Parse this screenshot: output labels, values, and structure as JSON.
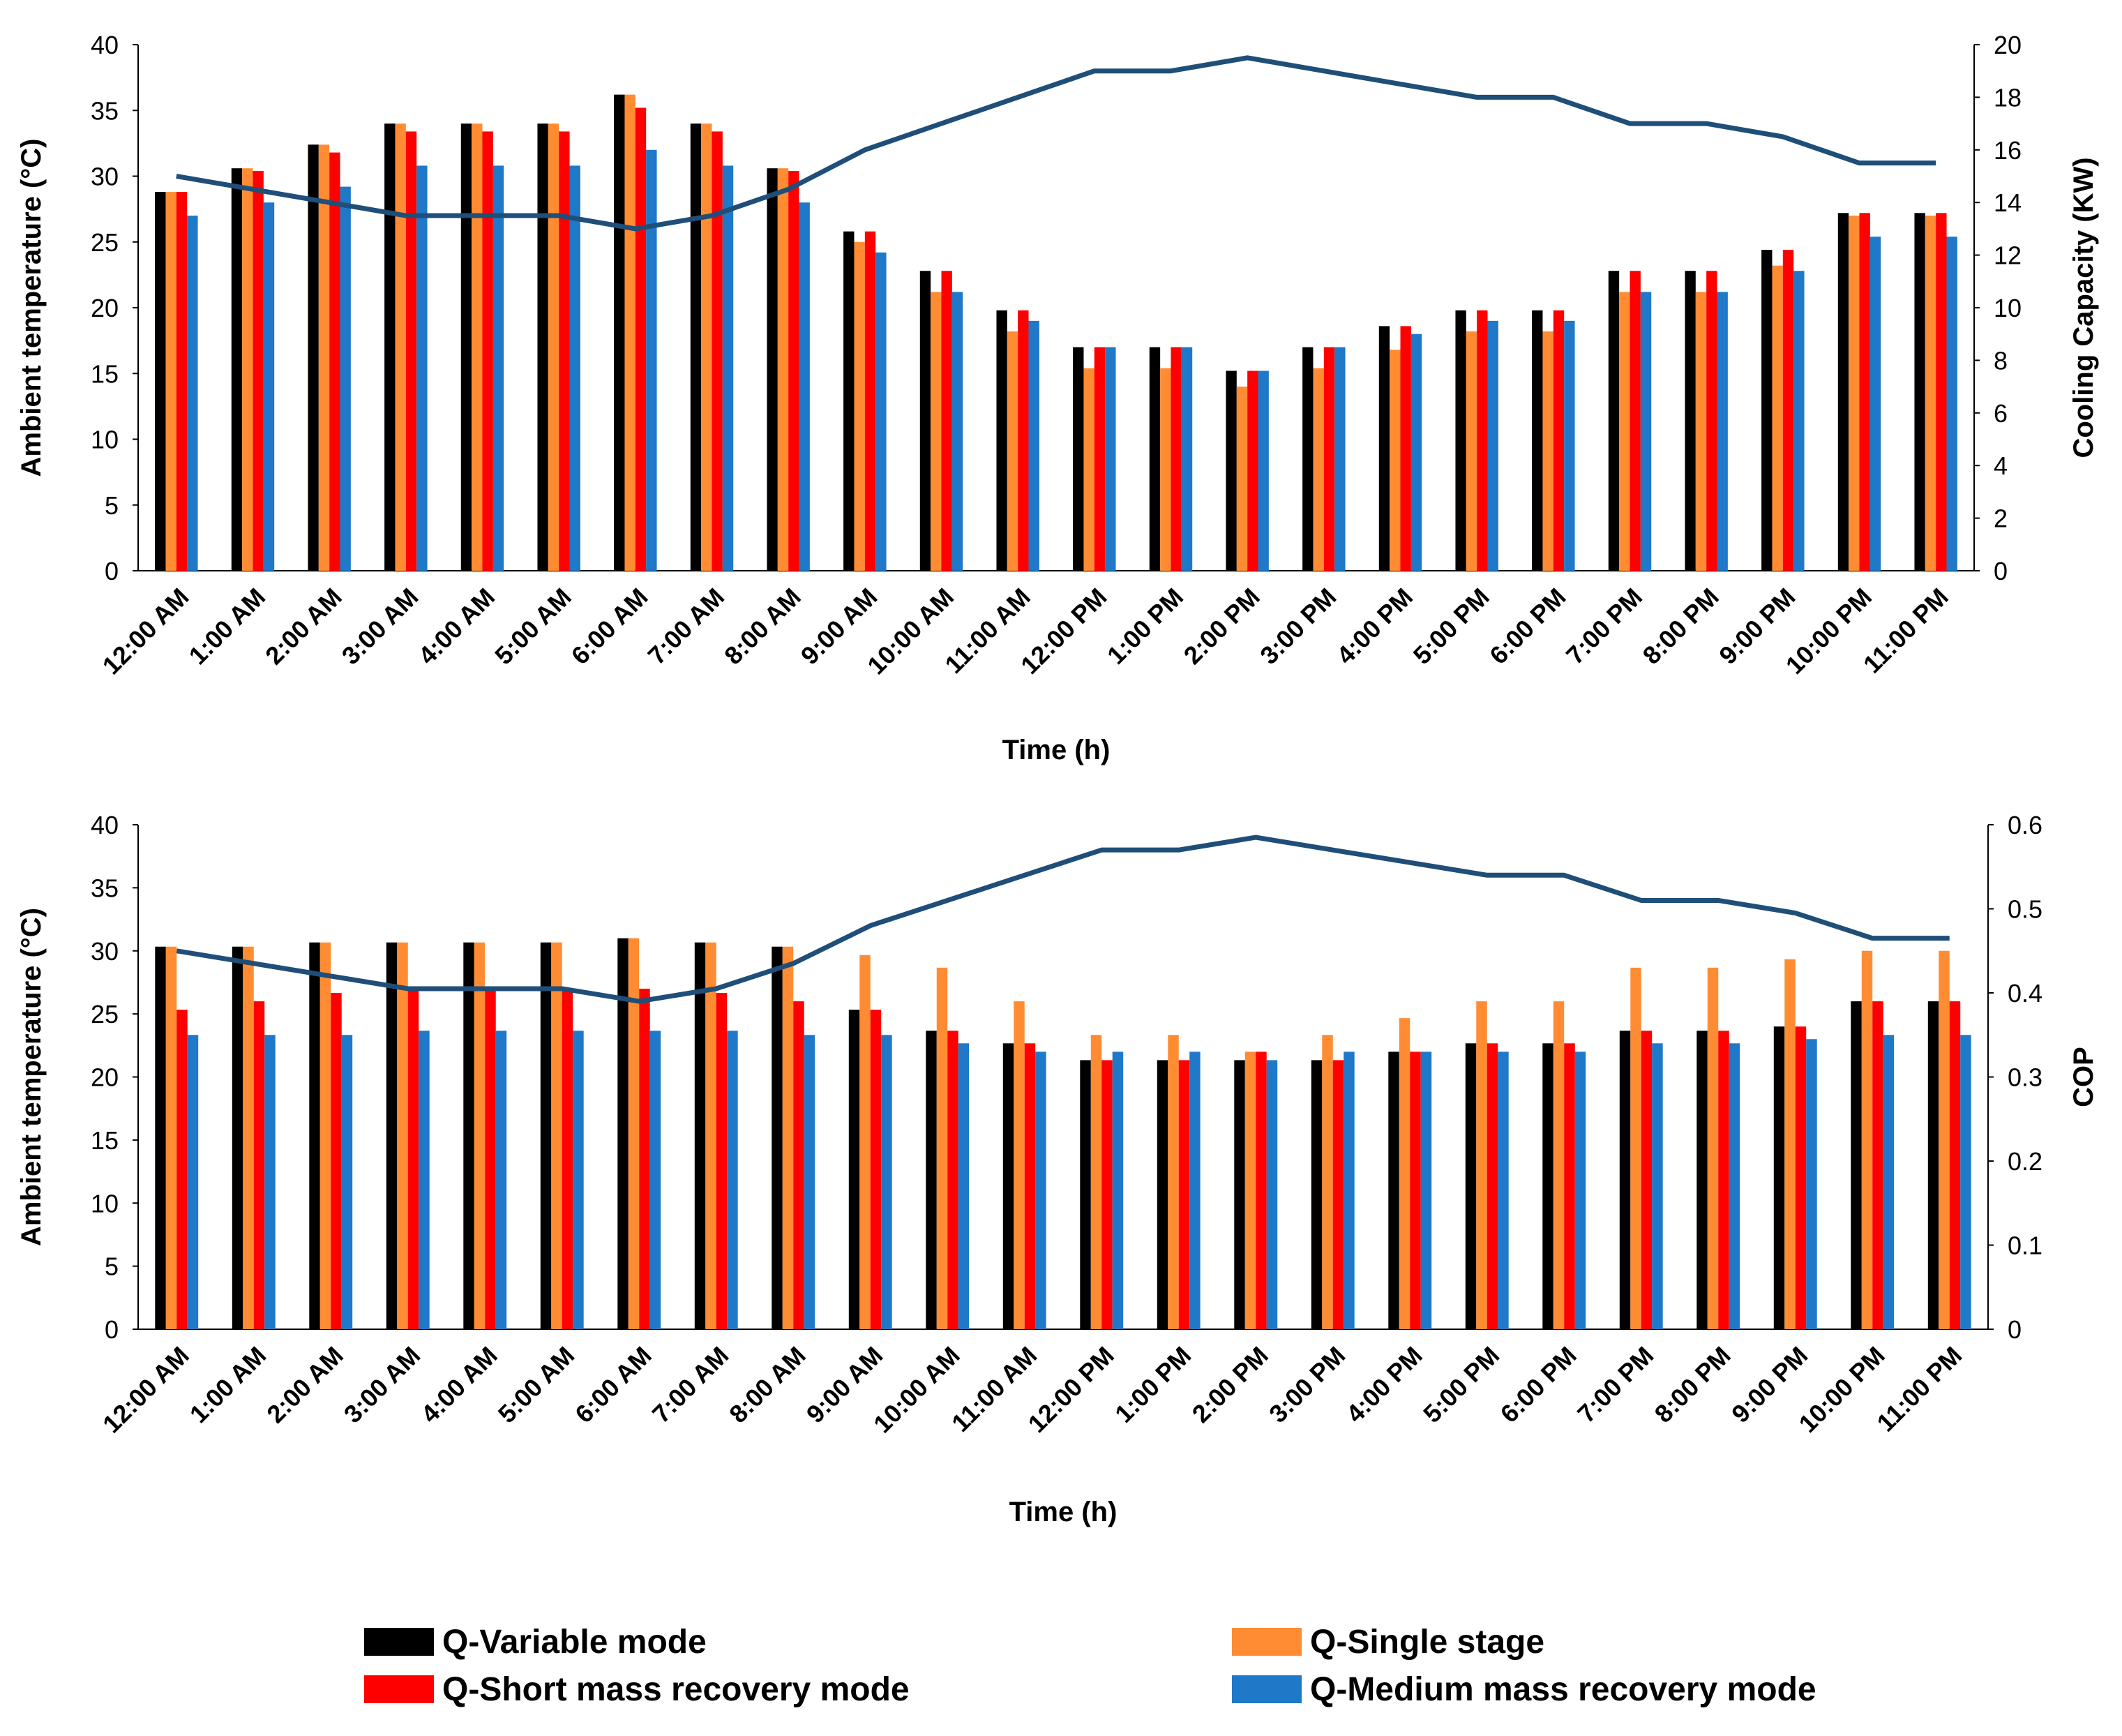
{
  "colors": {
    "variable": "#000000",
    "single": "#ff8c33",
    "short": "#ff0000",
    "medium": "#1f78c8",
    "line": "#1f4e79"
  },
  "legend": {
    "variable": "Q-Variable mode",
    "single": "Q-Single stage",
    "short": "Q-Short mass recovery mode",
    "medium": "Q-Medium mass recovery mode"
  },
  "chart_data": [
    {
      "type": "bar",
      "title": "",
      "xlabel": "Time (h)",
      "ylabel": "Ambient temperature (°C)",
      "y2label": "Cooling Capacity (KW)",
      "ylim": [
        0,
        40
      ],
      "y2lim": [
        0,
        20
      ],
      "yticks": [
        "0",
        "5",
        "10",
        "15",
        "20",
        "25",
        "30",
        "35",
        "40"
      ],
      "y2ticks": [
        "0",
        "2",
        "4",
        "6",
        "8",
        "10",
        "12",
        "14",
        "16",
        "18",
        "20"
      ],
      "grid": false,
      "categories": [
        "12:00 AM",
        "1:00 AM",
        "2:00 AM",
        "3:00 AM",
        "4:00 AM",
        "5:00 AM",
        "6:00 AM",
        "7:00 AM",
        "8:00 AM",
        "9:00 AM",
        "10:00 AM",
        "11:00 AM",
        "12:00 PM",
        "1:00 PM",
        "2:00 PM",
        "3:00 PM",
        "4:00 PM",
        "5:00 PM",
        "6:00 PM",
        "7:00 PM",
        "8:00 PM",
        "9:00 PM",
        "10:00 PM",
        "11:00 PM"
      ],
      "series": [
        {
          "name": "Q-Variable mode",
          "axis": "right",
          "kind": "bar",
          "values": [
            14.4,
            15.3,
            16.2,
            17.0,
            17.0,
            17.0,
            18.1,
            17.0,
            15.3,
            12.9,
            11.4,
            9.9,
            8.5,
            8.5,
            7.6,
            8.5,
            9.3,
            9.9,
            9.9,
            11.4,
            11.4,
            12.2,
            13.6,
            13.6
          ]
        },
        {
          "name": "Q-Single stage",
          "axis": "right",
          "kind": "bar",
          "values": [
            14.4,
            15.3,
            16.2,
            17.0,
            17.0,
            17.0,
            18.1,
            17.0,
            15.3,
            12.5,
            10.6,
            9.1,
            7.7,
            7.7,
            7.0,
            7.7,
            8.4,
            9.1,
            9.1,
            10.6,
            10.6,
            11.6,
            13.5,
            13.5
          ]
        },
        {
          "name": "Q-Short mass recovery mode",
          "axis": "right",
          "kind": "bar",
          "values": [
            14.4,
            15.2,
            15.9,
            16.7,
            16.7,
            16.7,
            17.6,
            16.7,
            15.2,
            12.9,
            11.4,
            9.9,
            8.5,
            8.5,
            7.6,
            8.5,
            9.3,
            9.9,
            9.9,
            11.4,
            11.4,
            12.2,
            13.6,
            13.6
          ]
        },
        {
          "name": "Q-Medium mass recovery mode",
          "axis": "right",
          "kind": "bar",
          "values": [
            13.5,
            14.0,
            14.6,
            15.4,
            15.4,
            15.4,
            16.0,
            15.4,
            14.0,
            12.1,
            10.6,
            9.5,
            8.5,
            8.5,
            7.6,
            8.5,
            9.0,
            9.5,
            9.5,
            10.6,
            10.6,
            11.4,
            12.7,
            12.7
          ]
        },
        {
          "name": "Ambient temperature",
          "axis": "left",
          "kind": "line",
          "values": [
            30,
            29,
            28,
            27,
            27,
            27,
            26,
            27,
            29,
            32,
            34,
            36,
            38,
            38,
            39,
            38,
            37,
            36,
            36,
            34,
            34,
            33,
            31,
            31
          ]
        }
      ]
    },
    {
      "type": "bar",
      "title": "",
      "xlabel": "Time (h)",
      "ylabel": "Ambient temperature (°C)",
      "y2label": "COP",
      "ylim": [
        0,
        40
      ],
      "y2lim": [
        0,
        0.6
      ],
      "yticks": [
        "0",
        "5",
        "10",
        "15",
        "20",
        "25",
        "30",
        "35",
        "40"
      ],
      "y2ticks": [
        "0",
        "0.1",
        "0.2",
        "0.3",
        "0.4",
        "0.5",
        "0.6"
      ],
      "grid": false,
      "categories": [
        "12:00 AM",
        "1:00 AM",
        "2:00 AM",
        "3:00 AM",
        "4:00 AM",
        "5:00 AM",
        "6:00 AM",
        "7:00 AM",
        "8:00 AM",
        "9:00 AM",
        "10:00 AM",
        "11:00 AM",
        "12:00 PM",
        "1:00 PM",
        "2:00 PM",
        "3:00 PM",
        "4:00 PM",
        "5:00 PM",
        "6:00 PM",
        "7:00 PM",
        "8:00 PM",
        "9:00 PM",
        "10:00 PM",
        "11:00 PM"
      ],
      "series": [
        {
          "name": "Q-Variable mode",
          "axis": "right",
          "kind": "bar",
          "values": [
            0.455,
            0.455,
            0.46,
            0.46,
            0.46,
            0.46,
            0.465,
            0.46,
            0.455,
            0.38,
            0.355,
            0.34,
            0.32,
            0.32,
            0.32,
            0.32,
            0.33,
            0.34,
            0.34,
            0.355,
            0.355,
            0.36,
            0.39,
            0.39
          ]
        },
        {
          "name": "Q-Single stage",
          "axis": "right",
          "kind": "bar",
          "values": [
            0.455,
            0.455,
            0.46,
            0.46,
            0.46,
            0.46,
            0.465,
            0.46,
            0.455,
            0.445,
            0.43,
            0.39,
            0.35,
            0.35,
            0.33,
            0.35,
            0.37,
            0.39,
            0.39,
            0.43,
            0.43,
            0.44,
            0.45,
            0.45
          ]
        },
        {
          "name": "Q-Short mass recovery mode",
          "axis": "right",
          "kind": "bar",
          "values": [
            0.38,
            0.39,
            0.4,
            0.405,
            0.405,
            0.405,
            0.405,
            0.4,
            0.39,
            0.38,
            0.355,
            0.34,
            0.32,
            0.32,
            0.33,
            0.32,
            0.33,
            0.34,
            0.34,
            0.355,
            0.355,
            0.36,
            0.39,
            0.39
          ]
        },
        {
          "name": "Q-Medium mass recovery mode",
          "axis": "right",
          "kind": "bar",
          "values": [
            0.35,
            0.35,
            0.35,
            0.355,
            0.355,
            0.355,
            0.355,
            0.355,
            0.35,
            0.35,
            0.34,
            0.33,
            0.33,
            0.33,
            0.32,
            0.33,
            0.33,
            0.33,
            0.33,
            0.34,
            0.34,
            0.345,
            0.35,
            0.35
          ]
        },
        {
          "name": "Ambient temperature",
          "axis": "left",
          "kind": "line",
          "values": [
            30,
            29,
            28,
            27,
            27,
            27,
            26,
            27,
            29,
            32,
            34,
            36,
            38,
            38,
            39,
            38,
            37,
            36,
            36,
            34,
            34,
            33,
            31,
            31
          ]
        }
      ]
    }
  ]
}
